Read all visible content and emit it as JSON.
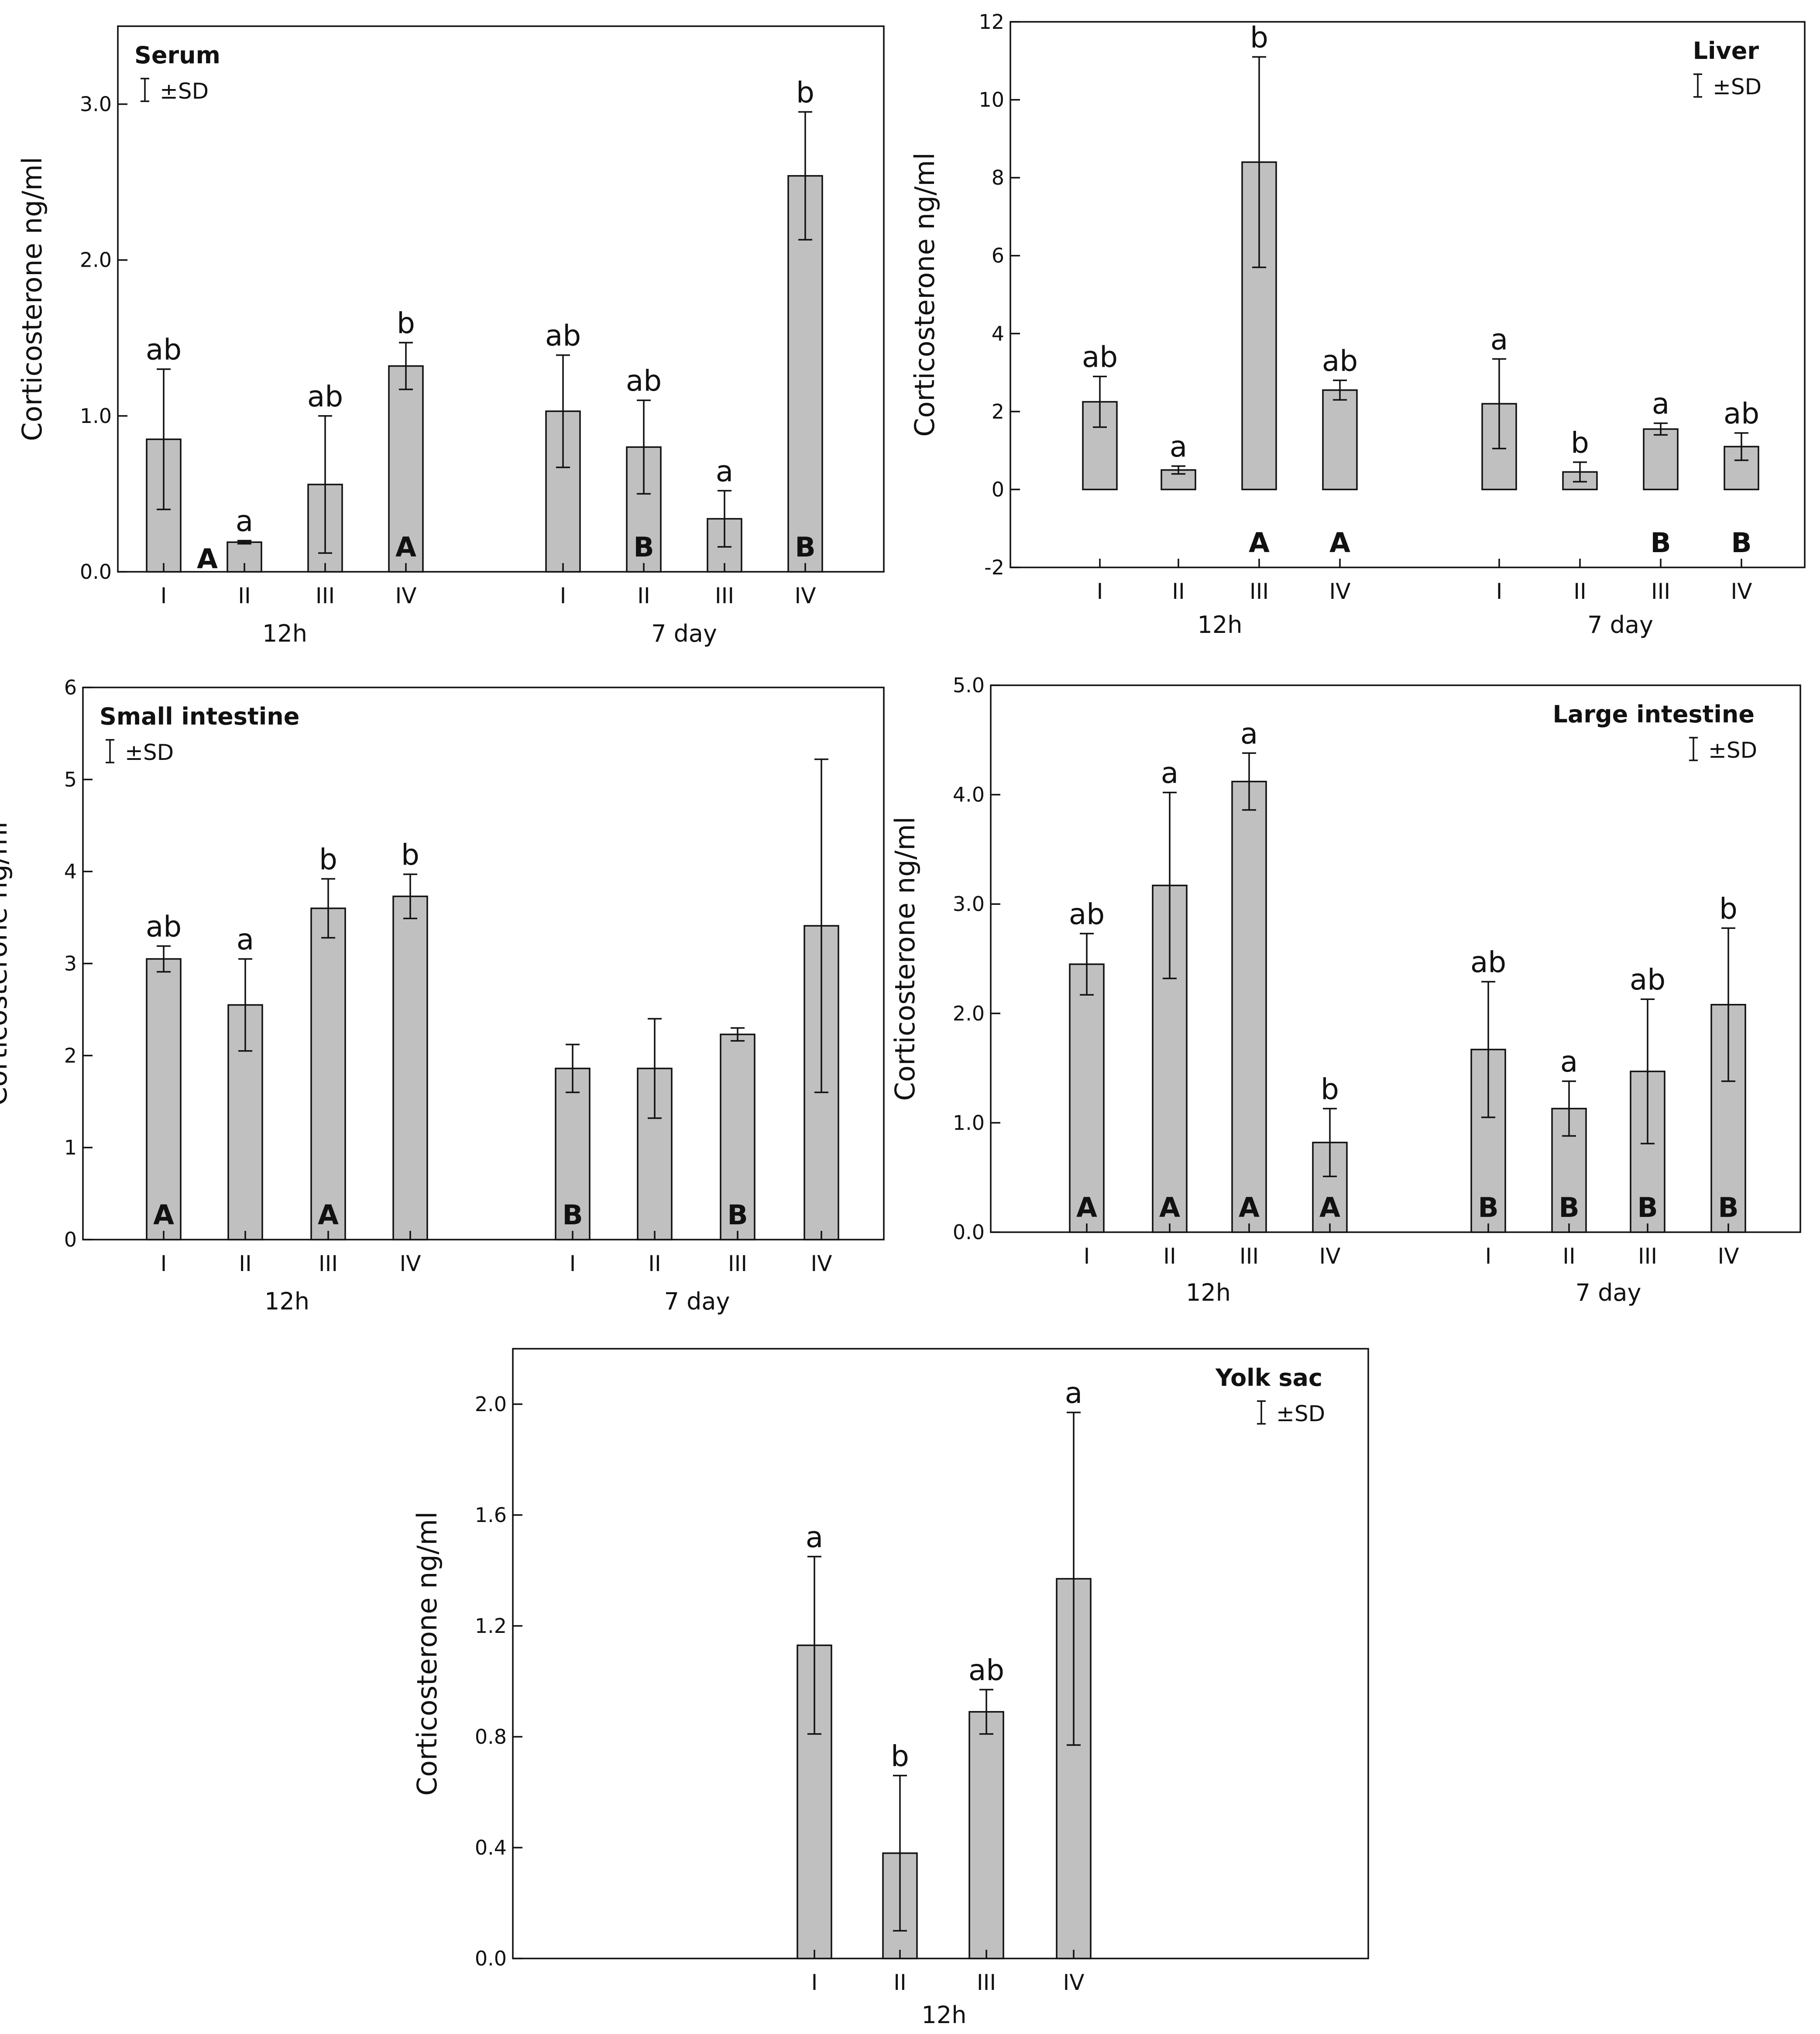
{
  "figure": {
    "ylabel": "Corticosterone ng/ml",
    "sd_legend": "±SD",
    "colors": {
      "bar_fill": "#c0c0c0",
      "stroke": "#111111"
    }
  },
  "chart_data": [
    {
      "id": "serum",
      "type": "bar",
      "title": "Serum",
      "ylabel": "Corticosterone ng/ml",
      "ylim": [
        0,
        3.5
      ],
      "yticks": [
        0,
        1,
        2,
        3
      ],
      "ytick_labels": [
        "0.0",
        "1.0",
        "2.0",
        "3.0"
      ],
      "legend": "±SD",
      "groups": [
        {
          "label": "12h",
          "categories": [
            "I",
            "II",
            "III",
            "IV"
          ],
          "values": [
            0.85,
            0.19,
            0.56,
            1.32
          ],
          "sd": [
            0.45,
            0.01,
            0.44,
            0.15
          ],
          "significance": [
            "ab",
            "a",
            "ab",
            "b"
          ],
          "bar_letters": [
            "",
            "",
            "",
            "A"
          ],
          "beside_letters": [
            "",
            "A",
            "",
            ""
          ]
        },
        {
          "label": "7 day",
          "categories": [
            "I",
            "II",
            "III",
            "IV"
          ],
          "values": [
            1.03,
            0.8,
            0.34,
            2.54
          ],
          "sd": [
            0.36,
            0.3,
            0.18,
            0.41
          ],
          "significance": [
            "ab",
            "ab",
            "a",
            "b"
          ],
          "bar_letters": [
            "",
            "B",
            "",
            "B"
          ],
          "beside_letters": [
            "",
            "",
            "",
            ""
          ]
        }
      ]
    },
    {
      "id": "liver",
      "type": "bar",
      "title": "Liver",
      "ylabel": "Corticosterone ng/ml",
      "ylim": [
        -2,
        12
      ],
      "yticks": [
        -2,
        0,
        2,
        4,
        6,
        8,
        10,
        12
      ],
      "ytick_labels": [
        "-2",
        "0",
        "2",
        "4",
        "6",
        "8",
        "10",
        "12"
      ],
      "legend": "±SD",
      "groups": [
        {
          "label": "12h",
          "categories": [
            "I",
            "II",
            "III",
            "IV"
          ],
          "values": [
            2.25,
            0.5,
            8.4,
            2.55
          ],
          "sd": [
            0.65,
            0.1,
            2.7,
            0.25
          ],
          "significance": [
            "ab",
            "a",
            "b",
            "ab"
          ],
          "bar_letters": [
            "",
            "",
            "A",
            "A"
          ],
          "beside_letters": [
            "",
            "",
            "",
            ""
          ]
        },
        {
          "label": "7 day",
          "categories": [
            "I",
            "II",
            "III",
            "IV"
          ],
          "values": [
            2.2,
            0.45,
            1.55,
            1.1
          ],
          "sd": [
            1.15,
            0.25,
            0.15,
            0.35
          ],
          "significance": [
            "a",
            "b",
            "a",
            "ab"
          ],
          "bar_letters": [
            "",
            "",
            "B",
            "B"
          ],
          "beside_letters": [
            "",
            "",
            "",
            ""
          ]
        }
      ]
    },
    {
      "id": "small-intestine",
      "type": "bar",
      "title": "Small intestine",
      "ylabel": "Corticosterone ng/ml",
      "ylim": [
        0,
        6
      ],
      "yticks": [
        0,
        1,
        2,
        3,
        4,
        5,
        6
      ],
      "ytick_labels": [
        "0",
        "1",
        "2",
        "3",
        "4",
        "5",
        "6"
      ],
      "legend": "±SD",
      "groups": [
        {
          "label": "12h",
          "categories": [
            "I",
            "II",
            "III",
            "IV"
          ],
          "values": [
            3.05,
            2.55,
            3.6,
            3.73
          ],
          "sd": [
            0.14,
            0.5,
            0.32,
            0.24
          ],
          "significance": [
            "ab",
            "a",
            "b",
            "b"
          ],
          "bar_letters": [
            "A",
            "",
            "A",
            ""
          ],
          "beside_letters": [
            "",
            "",
            "",
            ""
          ]
        },
        {
          "label": "7 day",
          "categories": [
            "I",
            "II",
            "III",
            "IV"
          ],
          "values": [
            1.86,
            1.86,
            2.23,
            3.41
          ],
          "sd": [
            0.26,
            0.54,
            0.07,
            1.81
          ],
          "significance": [
            "",
            "",
            "",
            ""
          ],
          "bar_letters": [
            "B",
            "",
            "B",
            ""
          ],
          "beside_letters": [
            "",
            "",
            "",
            ""
          ]
        }
      ]
    },
    {
      "id": "large-intestine",
      "type": "bar",
      "title": "Large intestine",
      "ylabel": "Corticosterone ng/ml",
      "ylim": [
        0,
        5
      ],
      "yticks": [
        0,
        1,
        2,
        3,
        4,
        5
      ],
      "ytick_labels": [
        "0.0",
        "1.0",
        "2.0",
        "3.0",
        "4.0",
        "5.0"
      ],
      "legend": "±SD",
      "groups": [
        {
          "label": "12h",
          "categories": [
            "I",
            "II",
            "III",
            "IV"
          ],
          "values": [
            2.45,
            3.17,
            4.12,
            0.82
          ],
          "sd": [
            0.28,
            0.85,
            0.26,
            0.31
          ],
          "significance": [
            "ab",
            "a",
            "a",
            "b"
          ],
          "bar_letters": [
            "A",
            "A",
            "A",
            "A"
          ],
          "beside_letters": [
            "",
            "",
            "",
            ""
          ]
        },
        {
          "label": "7 day",
          "categories": [
            "I",
            "II",
            "III",
            "IV"
          ],
          "values": [
            1.67,
            1.13,
            1.47,
            2.08
          ],
          "sd": [
            0.62,
            0.25,
            0.66,
            0.7
          ],
          "significance": [
            "ab",
            "a",
            "ab",
            "b"
          ],
          "bar_letters": [
            "B",
            "B",
            "B",
            "B"
          ],
          "beside_letters": [
            "",
            "",
            "",
            ""
          ]
        }
      ]
    },
    {
      "id": "yolk-sac",
      "type": "bar",
      "title": "Yolk sac",
      "ylabel": "Corticosterone ng/ml",
      "ylim": [
        0,
        2.2
      ],
      "yticks": [
        0,
        0.4,
        0.8,
        1.2,
        1.6,
        2.0
      ],
      "ytick_labels": [
        "0.0",
        "0.4",
        "0.8",
        "1.2",
        "1.6",
        "2.0"
      ],
      "legend": "±SD",
      "groups": [
        {
          "label": "12h",
          "categories": [
            "I",
            "II",
            "III",
            "IV"
          ],
          "values": [
            1.13,
            0.38,
            0.89,
            1.37
          ],
          "sd": [
            0.32,
            0.28,
            0.08,
            0.6
          ],
          "significance": [
            "a",
            "b",
            "ab",
            "a"
          ],
          "bar_letters": [
            "",
            "",
            "",
            ""
          ],
          "beside_letters": [
            "",
            "",
            "",
            ""
          ]
        }
      ]
    }
  ]
}
